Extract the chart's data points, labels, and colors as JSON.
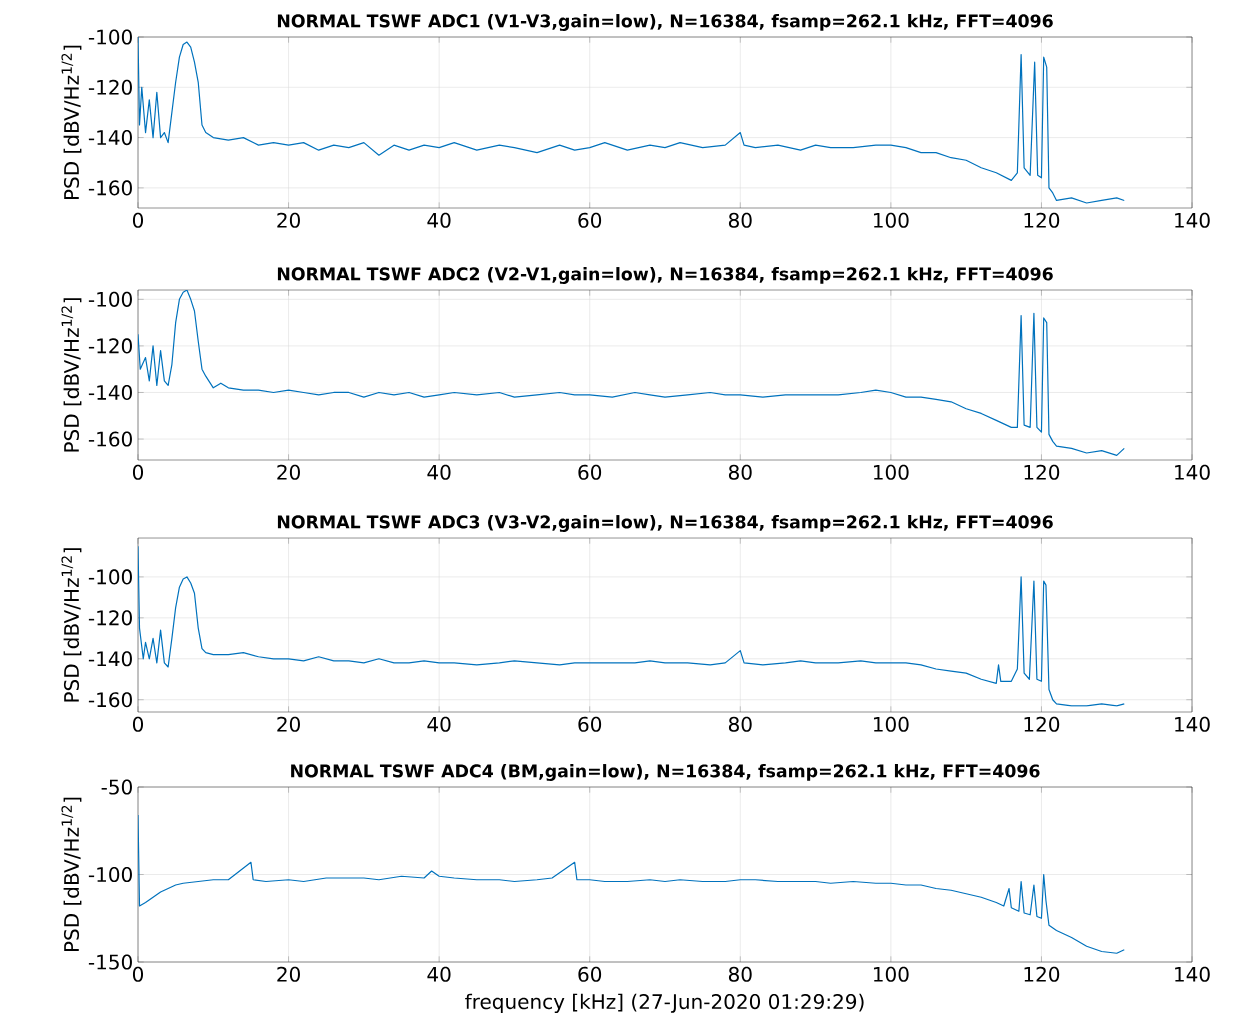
{
  "chart_data": [
    {
      "type": "line",
      "title": "NORMAL TSWF ADC1 (V1-V3,gain=low), N=16384, fsamp=262.1 kHz, FFT=4096",
      "ylabel": "PSD [dBV/Hz$^{1/2}$]",
      "color": "#0072bd",
      "grid": true,
      "xlim": [
        0,
        140
      ],
      "ylim": [
        -168,
        -100
      ],
      "xticks": [
        0,
        20,
        40,
        60,
        80,
        100,
        120,
        140
      ],
      "yticks": [
        -160,
        -140,
        -120,
        -100
      ],
      "x": [
        0,
        0.2,
        0.5,
        1,
        1.5,
        2,
        2.5,
        3,
        3.5,
        4,
        4.5,
        5,
        5.5,
        6,
        6.5,
        7,
        7.5,
        8,
        8.5,
        9,
        10,
        12,
        14,
        16,
        18,
        20,
        22,
        24,
        26,
        28,
        30,
        32,
        34,
        36,
        38,
        40,
        42,
        45,
        48,
        50,
        53,
        56,
        58,
        60,
        62,
        65,
        68,
        70,
        72,
        75,
        78,
        80,
        80.5,
        82,
        85,
        88,
        90,
        92,
        95,
        98,
        100,
        102,
        104,
        106,
        108,
        110,
        112,
        114,
        116,
        116.8,
        117.3,
        117.7,
        118.5,
        119.1,
        119.5,
        120,
        120.3,
        120.7,
        121,
        121.5,
        122,
        124,
        126,
        128,
        130,
        131
      ],
      "values": [
        -100,
        -135,
        -120,
        -138,
        -125,
        -140,
        -122,
        -140,
        -138,
        -142,
        -130,
        -118,
        -108,
        -103,
        -102,
        -104,
        -110,
        -118,
        -135,
        -138,
        -140,
        -141,
        -140,
        -143,
        -142,
        -143,
        -142,
        -145,
        -143,
        -144,
        -142,
        -147,
        -143,
        -145,
        -143,
        -144,
        -142,
        -145,
        -143,
        -144,
        -146,
        -143,
        -145,
        -144,
        -142,
        -145,
        -143,
        -144,
        -142,
        -144,
        -143,
        -138,
        -143,
        -144,
        -143,
        -145,
        -143,
        -144,
        -144,
        -143,
        -143,
        -144,
        -146,
        -146,
        -148,
        -149,
        -152,
        -154,
        -157,
        -154,
        -107,
        -152,
        -155,
        -110,
        -155,
        -156,
        -108,
        -112,
        -160,
        -162,
        -165,
        -164,
        -166,
        -165,
        -164,
        -165
      ]
    },
    {
      "type": "line",
      "title": "NORMAL TSWF ADC2 (V2-V1,gain=low), N=16384, fsamp=262.1 kHz, FFT=4096",
      "ylabel": "PSD [dBV/Hz$^{1/2}$]",
      "color": "#0072bd",
      "grid": true,
      "xlim": [
        0,
        140
      ],
      "ylim": [
        -169,
        -96
      ],
      "xticks": [
        0,
        20,
        40,
        60,
        80,
        100,
        120,
        140
      ],
      "yticks": [
        -160,
        -140,
        -120,
        -100
      ],
      "x": [
        0,
        0.3,
        1,
        1.5,
        2,
        2.5,
        3,
        3.5,
        4,
        4.5,
        5,
        5.5,
        6,
        6.5,
        7,
        7.5,
        8,
        8.5,
        9,
        10,
        11,
        12,
        14,
        16,
        18,
        20,
        22,
        24,
        26,
        28,
        30,
        32,
        34,
        36,
        38,
        40,
        42,
        45,
        48,
        50,
        53,
        56,
        58,
        60,
        63,
        66,
        68,
        70,
        73,
        76,
        78,
        80,
        83,
        86,
        88,
        90,
        93,
        96,
        98,
        100,
        102,
        104,
        106,
        108,
        110,
        112,
        114,
        116,
        116.8,
        117.3,
        117.7,
        118.5,
        119,
        119.4,
        120,
        120.3,
        120.7,
        121,
        121.5,
        122,
        124,
        126,
        128,
        130,
        131
      ],
      "values": [
        -115,
        -130,
        -125,
        -135,
        -120,
        -137,
        -122,
        -135,
        -137,
        -128,
        -110,
        -100,
        -97,
        -96,
        -100,
        -105,
        -118,
        -130,
        -133,
        -138,
        -136,
        -138,
        -139,
        -139,
        -140,
        -139,
        -140,
        -141,
        -140,
        -140,
        -142,
        -140,
        -141,
        -140,
        -142,
        -141,
        -140,
        -141,
        -140,
        -142,
        -141,
        -140,
        -141,
        -141,
        -142,
        -140,
        -141,
        -142,
        -141,
        -140,
        -141,
        -141,
        -142,
        -141,
        -141,
        -141,
        -141,
        -140,
        -139,
        -140,
        -142,
        -142,
        -143,
        -144,
        -147,
        -149,
        -152,
        -155,
        -155,
        -107,
        -154,
        -155,
        -106,
        -155,
        -157,
        -108,
        -110,
        -158,
        -161,
        -163,
        -164,
        -166,
        -165,
        -167,
        -164
      ]
    },
    {
      "type": "line",
      "title": "NORMAL TSWF ADC3 (V3-V2,gain=low), N=16384, fsamp=262.1 kHz, FFT=4096",
      "ylabel": "PSD [dBV/Hz$^{1/2}$]",
      "color": "#0072bd",
      "grid": true,
      "xlim": [
        0,
        140
      ],
      "ylim": [
        -166,
        -81
      ],
      "xticks": [
        0,
        20,
        40,
        60,
        80,
        100,
        120,
        140
      ],
      "yticks": [
        -160,
        -140,
        -120,
        -100
      ],
      "x": [
        0,
        0.2,
        0.7,
        1,
        1.5,
        2,
        2.5,
        3,
        3.5,
        4,
        4.5,
        5,
        5.5,
        6,
        6.5,
        7,
        7.5,
        8,
        8.5,
        9,
        10,
        12,
        14,
        16,
        18,
        20,
        22,
        24,
        26,
        28,
        30,
        32,
        34,
        36,
        38,
        40,
        42,
        45,
        48,
        50,
        53,
        56,
        58,
        60,
        63,
        66,
        68,
        70,
        73,
        76,
        78,
        80,
        80.5,
        83,
        86,
        88,
        90,
        93,
        96,
        98,
        100,
        102,
        104,
        106,
        108,
        110,
        112,
        114,
        114.3,
        114.6,
        116,
        116.8,
        117.3,
        117.7,
        118.4,
        119,
        119.4,
        120,
        120.3,
        120.6,
        121,
        121.5,
        122,
        124,
        126,
        128,
        130,
        131
      ],
      "values": [
        -85,
        -125,
        -140,
        -132,
        -140,
        -130,
        -142,
        -126,
        -142,
        -144,
        -130,
        -115,
        -105,
        -101,
        -100,
        -103,
        -108,
        -125,
        -135,
        -137,
        -138,
        -138,
        -137,
        -139,
        -140,
        -140,
        -141,
        -139,
        -141,
        -141,
        -142,
        -140,
        -142,
        -142,
        -141,
        -142,
        -142,
        -143,
        -142,
        -141,
        -142,
        -143,
        -142,
        -142,
        -142,
        -142,
        -141,
        -142,
        -142,
        -143,
        -142,
        -136,
        -142,
        -143,
        -142,
        -141,
        -142,
        -142,
        -141,
        -142,
        -142,
        -142,
        -143,
        -145,
        -146,
        -147,
        -150,
        -152,
        -143,
        -151,
        -151,
        -145,
        -100,
        -147,
        -150,
        -102,
        -150,
        -151,
        -102,
        -104,
        -155,
        -160,
        -162,
        -163,
        -163,
        -162,
        -163,
        -162
      ]
    },
    {
      "type": "line",
      "title": "NORMAL TSWF ADC4 (BM,gain=low), N=16384, fsamp=262.1 kHz, FFT=4096",
      "ylabel": "PSD [dBV/Hz$^{1/2}$]",
      "xlabel": "frequency [kHz] (27-Jun-2020 01:29:29)",
      "color": "#0072bd",
      "grid": true,
      "xlim": [
        0,
        140
      ],
      "ylim": [
        -150,
        -50
      ],
      "xticks": [
        0,
        20,
        40,
        60,
        80,
        100,
        120,
        140
      ],
      "yticks": [
        -150,
        -100,
        -50
      ],
      "x": [
        0,
        0.2,
        1,
        2,
        3,
        4,
        5,
        6,
        8,
        10,
        12,
        15,
        15.3,
        17,
        20,
        22,
        25,
        28,
        30,
        32,
        35,
        38,
        39,
        40,
        42,
        45,
        48,
        50,
        53,
        55,
        58,
        58.3,
        60,
        62,
        65,
        68,
        70,
        72,
        75,
        78,
        80,
        82,
        85,
        88,
        90,
        92,
        95,
        98,
        100,
        102,
        104,
        106,
        108,
        110,
        112,
        114,
        115,
        115.7,
        116,
        117,
        117.3,
        117.7,
        118.5,
        119,
        119.4,
        120,
        120.3,
        120.6,
        121,
        122,
        124,
        126,
        128,
        130,
        131
      ],
      "values": [
        -66,
        -118,
        -116,
        -113,
        -110,
        -108,
        -106,
        -105,
        -104,
        -103,
        -103,
        -93,
        -103,
        -104,
        -103,
        -104,
        -102,
        -102,
        -102,
        -103,
        -101,
        -102,
        -98,
        -101,
        -102,
        -103,
        -103,
        -104,
        -103,
        -102,
        -93,
        -103,
        -103,
        -104,
        -104,
        -103,
        -104,
        -103,
        -104,
        -104,
        -103,
        -103,
        -104,
        -104,
        -104,
        -105,
        -104,
        -105,
        -105,
        -106,
        -106,
        -108,
        -109,
        -111,
        -113,
        -116,
        -118,
        -108,
        -119,
        -121,
        -104,
        -122,
        -123,
        -106,
        -124,
        -125,
        -100,
        -115,
        -129,
        -132,
        -136,
        -141,
        -144,
        -145,
        -143
      ]
    }
  ]
}
